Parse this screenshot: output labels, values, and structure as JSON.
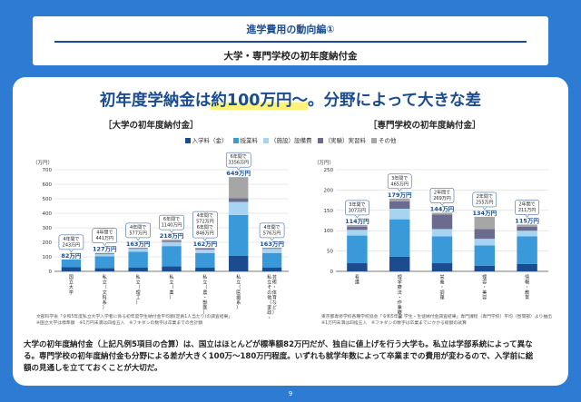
{
  "header": {
    "title": "進学費用の動向編①",
    "subtitle": "大学・専門学校の初年度納付金"
  },
  "headline": {
    "pre": "初年度学納金は",
    "highlight": "約100万円〜",
    "post": "。分野によって大きな差"
  },
  "section_left": "［大学の初年度納付金］",
  "section_right": "［専門学校の初年度納付金］",
  "unit_label": "（万円）",
  "legend": [
    {
      "label": "入学料（金）",
      "color": "#1a4c8f"
    },
    {
      "label": "授業料",
      "color": "#3a9ad9"
    },
    {
      "label": "（施設）設備費",
      "color": "#a8d4f2"
    },
    {
      "label": "（実験）実習料",
      "color": "#6b6b8e"
    },
    {
      "label": "その他",
      "color": "#a6a6a6"
    }
  ],
  "chart_data": [
    {
      "type": "bar",
      "stacked": true,
      "title": "［大学の初年度納付金］",
      "ylabel": "（万円）",
      "ylim": [
        0,
        700
      ],
      "yticks": [
        0,
        100,
        200,
        300,
        400,
        500,
        600,
        700
      ],
      "grid": true,
      "categories": [
        "国立大学",
        "私立（文科系）",
        "私立（理工）",
        "私立（薬）",
        "私立（農・獣医）",
        "私立（医歯系）",
        "私立その他（家政・芸術・体育など）"
      ],
      "totals_label": [
        "82万円",
        "127万円",
        "163万円",
        "218万円",
        "162万円",
        "649万円",
        "163万円"
      ],
      "totals": [
        82,
        127,
        163,
        218,
        162,
        649,
        163
      ],
      "four_year_label": [
        [
          "4年間で",
          "243万円"
        ],
        [
          "4年間で",
          "441万円"
        ],
        [
          "4年間で",
          "577万円"
        ],
        [
          "6年間で",
          "1140万円"
        ],
        [
          "4年間で",
          "572万円",
          "6年間で",
          "846万円"
        ],
        [
          "6年間で",
          "3356万円"
        ],
        [
          "4年間で",
          "576万円"
        ]
      ],
      "series": [
        {
          "name": "入学料（金）",
          "values": [
            28,
            23,
            25,
            34,
            25,
            108,
            25
          ]
        },
        {
          "name": "授業料",
          "values": [
            54,
            80,
            110,
            140,
            100,
            280,
            100
          ]
        },
        {
          "name": "（施設）設備費",
          "values": [
            0,
            15,
            20,
            28,
            25,
            90,
            30
          ]
        },
        {
          "name": "（実験）実習料",
          "values": [
            0,
            4,
            4,
            8,
            6,
            26,
            4
          ]
        },
        {
          "name": "その他",
          "values": [
            0,
            5,
            4,
            8,
            6,
            145,
            4
          ]
        }
      ]
    },
    {
      "type": "bar",
      "stacked": true,
      "title": "［専門学校の初年度納付金］",
      "ylabel": "（万円）",
      "ylim": [
        0,
        250
      ],
      "yticks": [
        0,
        50,
        100,
        150,
        200,
        250
      ],
      "grid": true,
      "categories": [
        "看護",
        "理学療法・作業療法",
        "栄養・調理",
        "理容・美容",
        "情報・教育"
      ],
      "totals_label": [
        "114万円",
        "179万円",
        "144万円",
        "134万円",
        "115万円"
      ],
      "totals": [
        114,
        179,
        144,
        134,
        115
      ],
      "four_year_label": [
        [
          "3年間で",
          "307万円"
        ],
        [
          "3年間で",
          "465万円"
        ],
        [
          "2年間で",
          "269万円"
        ],
        [
          "2年間で",
          "255万円"
        ],
        [
          "2年間で",
          "211万円"
        ]
      ],
      "series": [
        {
          "name": "入学料（金）",
          "values": [
            20,
            36,
            20,
            14,
            18
          ]
        },
        {
          "name": "授業料",
          "values": [
            68,
            92,
            66,
            50,
            68
          ]
        },
        {
          "name": "（施設）設備費",
          "values": [
            14,
            26,
            18,
            16,
            14
          ]
        },
        {
          "name": "（実験）実習料",
          "values": [
            8,
            18,
            36,
            24,
            10
          ]
        },
        {
          "name": "その他",
          "values": [
            4,
            7,
            4,
            30,
            5
          ]
        }
      ]
    }
  ],
  "source_left": [
    "文部科学省「令和5年度私立大学入学者に係る初年度学生納付金平均額(定員1人当たり)の調査結果」",
    "※国立大学は標準額　※1万円未満は四捨五入　※フキダシの数字は卒業までの合計額"
  ],
  "source_right": [
    "東京都専修学校各種学校協会「令和5年度 学生・生徒納付金調査結果」専門課程（専門学校）平均（昼間部）より抽出",
    "※1万円未満は四捨五入　※フキダシの数字は卒業までにかかる総額の試算"
  ],
  "summary": "大学の初年度納付金（上記凡例5項目の合算）は、国立はほとんどが標準額82万円だが、独自に値上げを行う大学も。私立は学部系統によって異なる。専門学校の初年度納付金も分野による差が大きく100万〜180万円程度。いずれも就学年数によって卒業までの費用が変わるので、入学前に総額の見通しを立てておくことが大切だ。",
  "page_number": "9"
}
